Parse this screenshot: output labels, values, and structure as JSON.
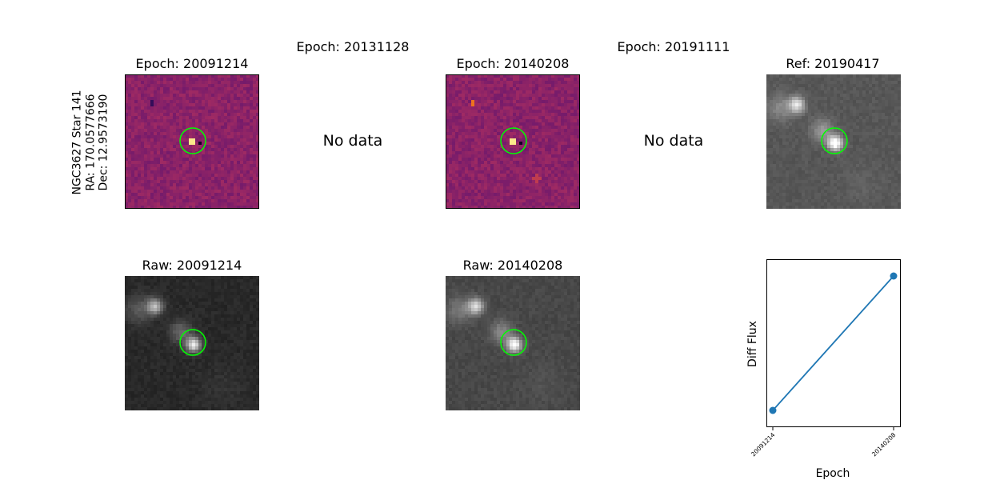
{
  "star_label": [
    "NGC3627 Star 141",
    "RA: 170.0577666",
    "Dec: 12.9573190"
  ],
  "panels_top": [
    {
      "title": "Epoch: 20091214",
      "type": "diff",
      "seed": 11
    },
    {
      "title": "Epoch: 20131128",
      "type": "nodata",
      "text": "No data"
    },
    {
      "title": "Epoch: 20140208",
      "type": "diff",
      "seed": 29
    },
    {
      "title": "Epoch: 20191111",
      "type": "nodata",
      "text": "No data"
    },
    {
      "title": "Ref: 20190417",
      "type": "raw",
      "seed": 7
    }
  ],
  "panels_bottom": [
    {
      "title": "Raw: 20091214",
      "type": "raw",
      "seed": 3
    },
    {
      "title": "Raw: 20140208",
      "type": "raw",
      "seed": 5
    }
  ],
  "colors": {
    "circle": "#00ff00",
    "line": "#1f77b4"
  },
  "chart_data": {
    "type": "line",
    "x": [
      "20091214",
      "20140208"
    ],
    "y": [
      0.1,
      0.9
    ],
    "xlabel": "Epoch",
    "ylabel": "Diff Flux",
    "marker": "circle",
    "yticks": "hidden",
    "grid": false
  }
}
